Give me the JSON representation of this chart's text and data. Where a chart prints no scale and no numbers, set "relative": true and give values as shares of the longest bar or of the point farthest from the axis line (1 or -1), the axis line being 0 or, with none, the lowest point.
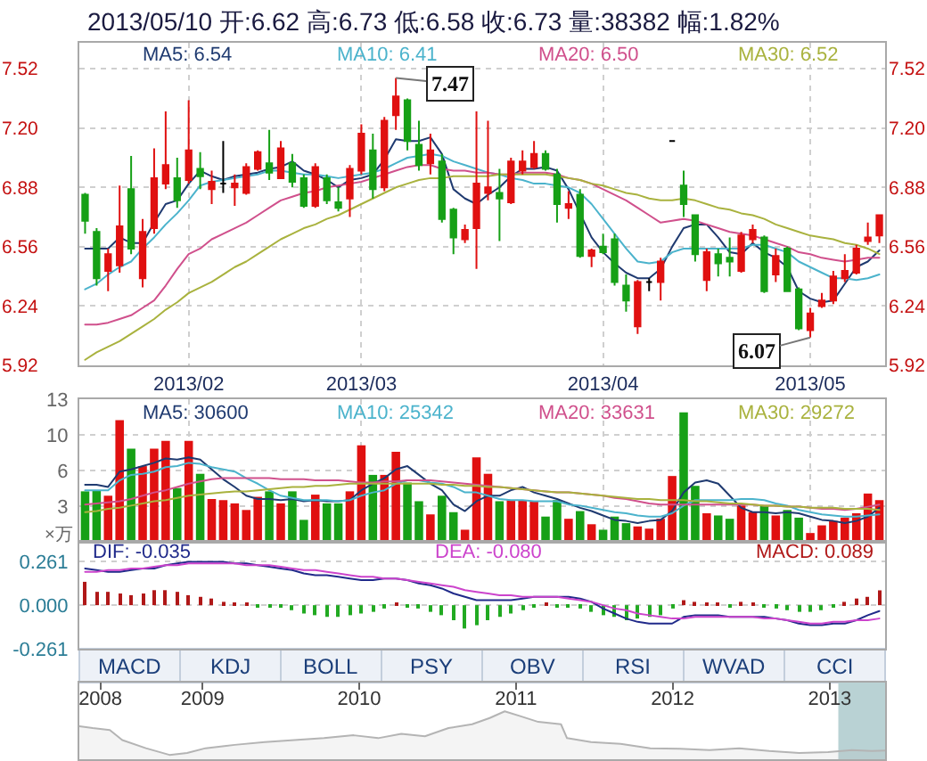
{
  "chart_data": [
    {
      "type": "candlestick",
      "title": "2013/05/10 开:6.62 高:6.73 低:6.58 收:6.73 量:38382 幅:1.82%",
      "categories": [
        null,
        null,
        null,
        null,
        null,
        null,
        null,
        null,
        null,
        "2013/02",
        null,
        null,
        null,
        null,
        null,
        null,
        null,
        null,
        null,
        null,
        null,
        null,
        null,
        null,
        "2013/03",
        null,
        null,
        null,
        null,
        null,
        null,
        null,
        null,
        null,
        null,
        null,
        null,
        null,
        null,
        null,
        null,
        null,
        null,
        null,
        null,
        "2013/04",
        null,
        null,
        null,
        null,
        null,
        null,
        null,
        null,
        null,
        null,
        null,
        null,
        null,
        null,
        null,
        null,
        null,
        "2013/05",
        null,
        null,
        null,
        null,
        null,
        null
      ],
      "ohlc": [
        [
          6.84,
          6.85,
          6.63,
          6.7
        ],
        [
          6.64,
          6.66,
          6.35,
          6.39
        ],
        [
          6.43,
          6.55,
          6.32,
          6.52
        ],
        [
          6.46,
          6.89,
          6.42,
          6.67
        ],
        [
          6.87,
          7.05,
          6.52,
          6.55
        ],
        [
          6.39,
          6.71,
          6.34,
          6.64
        ],
        [
          6.66,
          7.09,
          6.63,
          6.93
        ],
        [
          6.9,
          7.29,
          6.87,
          7.0
        ],
        [
          6.93,
          7.04,
          6.77,
          6.81
        ],
        [
          6.92,
          7.35,
          6.9,
          7.08
        ],
        [
          6.98,
          7.07,
          6.87,
          6.94
        ],
        [
          6.87,
          6.97,
          6.79,
          6.91
        ],
        [
          6.9,
          7.13,
          6.85,
          6.9
        ],
        [
          6.88,
          6.95,
          6.78,
          6.9
        ],
        [
          6.85,
          7.01,
          6.84,
          6.99
        ],
        [
          6.98,
          7.08,
          6.97,
          7.07
        ],
        [
          7.01,
          7.19,
          6.92,
          6.96
        ],
        [
          6.93,
          7.13,
          6.93,
          7.09
        ],
        [
          7.01,
          7.06,
          6.88,
          6.91
        ],
        [
          6.93,
          6.95,
          6.77,
          6.78
        ],
        [
          6.78,
          7.01,
          6.77,
          6.99
        ],
        [
          6.93,
          6.95,
          6.79,
          6.81
        ],
        [
          6.8,
          6.88,
          6.75,
          6.77
        ],
        [
          6.82,
          7.0,
          6.72,
          6.98
        ],
        [
          6.97,
          7.22,
          6.95,
          7.17
        ],
        [
          7.08,
          7.17,
          6.82,
          6.87
        ],
        [
          6.88,
          7.26,
          6.86,
          7.24
        ],
        [
          7.27,
          7.47,
          7.19,
          7.37
        ],
        [
          7.35,
          7.36,
          7.08,
          7.13
        ],
        [
          7.11,
          7.24,
          6.97,
          7.0
        ],
        [
          7.01,
          7.17,
          6.95,
          7.08
        ],
        [
          7.02,
          7.06,
          6.69,
          6.71
        ],
        [
          6.76,
          6.77,
          6.52,
          6.61
        ],
        [
          6.6,
          6.68,
          6.58,
          6.65
        ],
        [
          6.66,
          7.29,
          6.44,
          6.9
        ],
        [
          6.85,
          7.24,
          6.81,
          6.88
        ],
        [
          6.85,
          6.98,
          6.59,
          6.82
        ],
        [
          6.8,
          7.04,
          6.79,
          7.02
        ],
        [
          6.97,
          7.08,
          6.95,
          7.02
        ],
        [
          6.99,
          7.13,
          6.98,
          7.06
        ],
        [
          7.06,
          7.08,
          6.97,
          6.98
        ],
        [
          6.95,
          6.98,
          6.69,
          6.79
        ],
        [
          6.77,
          6.86,
          6.71,
          6.79
        ],
        [
          6.84,
          6.87,
          6.5,
          6.51
        ],
        [
          6.51,
          6.55,
          6.45,
          6.54
        ],
        [
          6.56,
          6.63,
          6.52,
          6.53
        ],
        [
          6.6,
          6.63,
          6.35,
          6.37
        ],
        [
          6.35,
          6.41,
          6.21,
          6.27
        ],
        [
          6.13,
          6.38,
          6.09,
          6.37
        ],
        [
          6.37,
          6.39,
          6.32,
          6.37
        ],
        [
          6.37,
          6.5,
          6.27,
          6.48
        ],
        [
          7.13,
          7.13,
          7.13,
          7.13
        ],
        [
          6.89,
          6.97,
          6.72,
          6.79
        ],
        [
          6.73,
          6.73,
          6.48,
          6.52
        ],
        [
          6.38,
          6.55,
          6.32,
          6.53
        ],
        [
          6.52,
          6.55,
          6.4,
          6.47
        ],
        [
          6.5,
          6.61,
          6.4,
          6.48
        ],
        [
          6.43,
          6.64,
          6.42,
          6.62
        ],
        [
          6.6,
          6.68,
          6.58,
          6.65
        ],
        [
          6.61,
          6.62,
          6.31,
          6.32
        ],
        [
          6.41,
          6.55,
          6.37,
          6.51
        ],
        [
          6.55,
          6.56,
          6.32,
          6.32
        ],
        [
          6.33,
          6.34,
          6.11,
          6.12
        ],
        [
          6.11,
          6.23,
          6.07,
          6.2
        ],
        [
          6.24,
          6.31,
          6.23,
          6.27
        ],
        [
          6.27,
          6.43,
          6.25,
          6.4
        ],
        [
          6.39,
          6.52,
          6.37,
          6.43
        ],
        [
          6.42,
          6.57,
          6.41,
          6.55
        ],
        [
          6.59,
          6.69,
          6.57,
          6.61
        ],
        [
          6.62,
          6.73,
          6.58,
          6.73
        ]
      ],
      "colors": [
        "#16a016",
        "#16a016",
        "#e01010",
        "#e01010",
        "#16a016",
        "#e01010",
        "#e01010",
        "#e01010",
        "#16a016",
        "#e01010",
        "#16a016",
        "#e01010",
        "#000000",
        "#e01010",
        "#e01010",
        "#e01010",
        "#16a016",
        "#e01010",
        "#16a016",
        "#16a016",
        "#e01010",
        "#16a016",
        "#16a016",
        "#e01010",
        "#e01010",
        "#16a016",
        "#e01010",
        "#e01010",
        "#16a016",
        "#16a016",
        "#e01010",
        "#16a016",
        "#16a016",
        "#e01010",
        "#e01010",
        "#e01010",
        "#16a016",
        "#e01010",
        "#e01010",
        "#e01010",
        "#16a016",
        "#16a016",
        "#e01010",
        "#16a016",
        "#e01010",
        "#16a016",
        "#16a016",
        "#16a016",
        "#e01010",
        "#000000",
        "#e01010",
        "#000000",
        "#16a016",
        "#16a016",
        "#e01010",
        "#16a016",
        "#16a016",
        "#e01010",
        "#e01010",
        "#16a016",
        "#e01010",
        "#16a016",
        "#16a016",
        "#e01010",
        "#e01010",
        "#e01010",
        "#e01010",
        "#e01010",
        "#e01010",
        "#e01010"
      ],
      "series": [
        {
          "type": "line",
          "name": "MA5: 6.54",
          "color": "#1f3a70",
          "values": [
            6.55,
            6.55,
            6.55,
            6.61,
            6.58,
            6.58,
            6.69,
            6.79,
            6.81,
            6.9,
            6.97,
            6.94,
            6.92,
            6.94,
            6.95,
            6.96,
            6.98,
            6.99,
            7.02,
            6.97,
            6.95,
            6.92,
            6.88,
            6.92,
            6.93,
            6.95,
            7.03,
            7.14,
            7.13,
            7.13,
            7.15,
            7.06,
            6.87,
            6.82,
            6.79,
            6.84,
            6.88,
            6.94,
            6.98,
            6.98,
            6.99,
            6.97,
            6.87,
            6.74,
            6.61,
            6.53,
            6.47,
            6.42,
            6.39,
            6.39,
            6.44,
            6.56,
            6.66,
            6.68,
            6.68,
            6.61,
            6.53,
            6.52,
            6.58,
            6.53,
            6.5,
            6.45,
            6.32,
            6.28,
            6.26,
            6.27,
            6.36,
            6.45,
            6.48,
            6.54
          ]
        },
        {
          "type": "line",
          "name": "MA10: 6.41",
          "color": "#4bb3cc",
          "values": [
            6.33,
            6.36,
            6.41,
            6.45,
            6.48,
            6.55,
            6.61,
            6.68,
            6.74,
            6.81,
            6.89,
            6.91,
            6.92,
            6.93,
            6.94,
            6.95,
            6.97,
            6.97,
            6.96,
            6.95,
            6.95,
            6.94,
            6.93,
            6.94,
            6.95,
            6.96,
            6.98,
            7.01,
            7.04,
            7.05,
            7.06,
            7.05,
            7.02,
            7.0,
            6.98,
            6.96,
            6.95,
            6.93,
            6.92,
            6.9,
            6.9,
            6.89,
            6.88,
            6.85,
            6.79,
            6.71,
            6.63,
            6.55,
            6.48,
            6.47,
            6.48,
            6.53,
            6.55,
            6.55,
            6.55,
            6.55,
            6.55,
            6.55,
            6.57,
            6.57,
            6.55,
            6.53,
            6.48,
            6.45,
            6.42,
            6.39,
            6.39,
            6.38,
            6.39,
            6.41
          ]
        },
        {
          "type": "line",
          "name": "MA20: 6.50",
          "color": "#d0508c",
          "values": [
            6.14,
            6.14,
            6.15,
            6.17,
            6.19,
            6.23,
            6.27,
            6.35,
            6.44,
            6.52,
            6.55,
            6.6,
            6.63,
            6.66,
            6.69,
            6.73,
            6.77,
            6.81,
            6.83,
            6.85,
            6.86,
            6.88,
            6.89,
            6.9,
            6.91,
            6.93,
            6.95,
            6.97,
            6.99,
            7.0,
            7.0,
            6.98,
            6.97,
            6.97,
            6.96,
            6.96,
            6.95,
            6.95,
            6.96,
            6.96,
            6.96,
            6.95,
            6.93,
            6.92,
            6.9,
            6.87,
            6.84,
            6.81,
            6.77,
            6.73,
            6.69,
            6.7,
            6.71,
            6.7,
            6.68,
            6.66,
            6.64,
            6.63,
            6.62,
            6.6,
            6.58,
            6.56,
            6.53,
            6.52,
            6.5,
            6.49,
            6.48,
            6.49,
            6.5,
            6.5
          ]
        },
        {
          "type": "line",
          "name": "MA30: 6.52",
          "color": "#a9b23e",
          "values": [
            5.95,
            5.99,
            6.02,
            6.05,
            6.09,
            6.13,
            6.17,
            6.22,
            6.26,
            6.31,
            6.34,
            6.37,
            6.41,
            6.45,
            6.48,
            6.52,
            6.56,
            6.6,
            6.63,
            6.66,
            6.68,
            6.71,
            6.73,
            6.76,
            6.79,
            6.82,
            6.85,
            6.88,
            6.9,
            6.92,
            6.93,
            6.93,
            6.94,
            6.94,
            6.94,
            6.94,
            6.95,
            6.95,
            6.95,
            6.95,
            6.95,
            6.94,
            6.93,
            6.92,
            6.9,
            6.89,
            6.87,
            6.85,
            6.84,
            6.82,
            6.81,
            6.81,
            6.82,
            6.81,
            6.79,
            6.77,
            6.76,
            6.74,
            6.73,
            6.71,
            6.68,
            6.66,
            6.64,
            6.62,
            6.61,
            6.6,
            6.58,
            6.57,
            6.55,
            6.52
          ]
        }
      ],
      "annotations": [
        "7.47",
        "6.07"
      ],
      "ylim": [
        5.92,
        7.66
      ],
      "yticks": [
        5.92,
        6.24,
        6.56,
        6.88,
        {
          "value": 7.2,
          "label": "7.20"
        },
        7.52
      ],
      "y2lim": [
        5.92,
        7.66
      ],
      "y2ticks": [
        5.92,
        6.24,
        6.56,
        6.88,
        {
          "value": 7.2,
          "label": "7.20"
        },
        7.52
      ],
      "grid": true
    },
    {
      "type": "bar",
      "ylabel": "×万",
      "categories": [
        null,
        null,
        null,
        null,
        null,
        null,
        null,
        null,
        null,
        "2013/02",
        null,
        null,
        null,
        null,
        null,
        null,
        null,
        null,
        null,
        null,
        null,
        null,
        null,
        null,
        "2013/03",
        null,
        null,
        null,
        null,
        null,
        null,
        null,
        null,
        null,
        null,
        null,
        null,
        null,
        null,
        null,
        null,
        null,
        null,
        null,
        null,
        "2013/04",
        null,
        null,
        null,
        null,
        null,
        null,
        null,
        null,
        null,
        null,
        null,
        null,
        null,
        null,
        null,
        null,
        null,
        "2013/05",
        null,
        null,
        null,
        null,
        null,
        null
      ],
      "series": [
        {
          "type": "bar",
          "values": [
            4.6,
            4.7,
            4.2,
            11.1,
            8.5,
            6.9,
            8.5,
            9.2,
            4.9,
            9.2,
            6.2,
            3.9,
            3.8,
            3.5,
            2.9,
            4.1,
            4.6,
            3.5,
            4.6,
            2.0,
            4.3,
            3.5,
            3.5,
            4.6,
            8.8,
            6.1,
            6.1,
            8.2,
            5.4,
            3.7,
            2.5,
            4.2,
            2.7,
            1.1,
            7.7,
            6.2,
            3.7,
            3.8,
            3.8,
            3.7,
            2.3,
            3.8,
            2.1,
            2.8,
            1.6,
            1.1,
            2.3,
            1.7,
            1.4,
            1.2,
            2.1,
            6.0,
            11.8,
            5.1,
            2.6,
            2.4,
            2.1,
            3.3,
            2.7,
            3.3,
            2.4,
            2.9,
            2.2,
            0.8,
            1.5,
            1.9,
            2.2,
            2.6,
            4.4,
            3.8
          ],
          "colors": [
            "#16a016",
            "#16a016",
            "#e01010",
            "#e01010",
            "#16a016",
            "#e01010",
            "#e01010",
            "#e01010",
            "#16a016",
            "#e01010",
            "#16a016",
            "#e01010",
            "#e01010",
            "#e01010",
            "#e01010",
            "#e01010",
            "#16a016",
            "#e01010",
            "#16a016",
            "#16a016",
            "#e01010",
            "#16a016",
            "#16a016",
            "#e01010",
            "#e01010",
            "#16a016",
            "#e01010",
            "#e01010",
            "#16a016",
            "#16a016",
            "#e01010",
            "#16a016",
            "#16a016",
            "#e01010",
            "#e01010",
            "#e01010",
            "#16a016",
            "#e01010",
            "#e01010",
            "#e01010",
            "#16a016",
            "#16a016",
            "#e01010",
            "#16a016",
            "#e01010",
            "#16a016",
            "#16a016",
            "#16a016",
            "#e01010",
            "#e01010",
            "#e01010",
            "#e01010",
            "#16a016",
            "#16a016",
            "#e01010",
            "#16a016",
            "#16a016",
            "#e01010",
            "#e01010",
            "#16a016",
            "#e01010",
            "#16a016",
            "#16a016",
            "#e01010",
            "#e01010",
            "#e01010",
            "#e01010",
            "#e01010",
            "#e01010",
            "#e01010"
          ]
        },
        {
          "type": "line",
          "name": "MA5: 30600",
          "color": "#1f3a70",
          "values": [
            5.2,
            5.2,
            5.0,
            6.4,
            6.6,
            6.9,
            7.2,
            7.6,
            7.5,
            7.7,
            7.5,
            6.6,
            5.7,
            5.0,
            4.2,
            3.9,
            3.9,
            3.8,
            3.9,
            3.7,
            3.8,
            3.7,
            3.7,
            3.8,
            4.7,
            5.3,
            5.8,
            6.6,
            6.9,
            6.1,
            5.3,
            4.7,
            3.4,
            2.8,
            3.7,
            4.2,
            4.2,
            4.7,
            5.0,
            4.5,
            4.2,
            3.9,
            3.5,
            3.1,
            2.8,
            2.4,
            2.0,
            1.9,
            1.7,
            1.9,
            2.0,
            2.8,
            4.5,
            5.4,
            5.6,
            5.3,
            4.2,
            3.1,
            2.7,
            2.7,
            2.6,
            2.7,
            2.6,
            2.3,
            2.0,
            1.9,
            1.7,
            1.9,
            2.3,
            3.1
          ]
        },
        {
          "type": "line",
          "name": "MA10: 25342",
          "color": "#4bb3cc",
          "values": [
            4.7,
            4.7,
            4.7,
            5.6,
            6.1,
            6.2,
            6.4,
            6.8,
            6.9,
            7.2,
            7.1,
            6.8,
            6.6,
            6.4,
            5.8,
            5.3,
            4.7,
            4.2,
            4.0,
            3.8,
            3.8,
            3.8,
            3.7,
            3.8,
            4.2,
            4.5,
            4.7,
            5.3,
            5.6,
            5.6,
            5.4,
            5.3,
            5.0,
            4.5,
            4.5,
            4.2,
            3.9,
            3.8,
            3.8,
            3.7,
            3.7,
            3.7,
            3.4,
            3.3,
            3.1,
            2.9,
            2.7,
            2.6,
            2.4,
            2.3,
            2.3,
            2.6,
            3.3,
            3.8,
            3.8,
            3.8,
            3.8,
            3.9,
            3.9,
            3.8,
            3.5,
            3.3,
            2.9,
            2.7,
            2.5,
            2.4,
            2.3,
            2.3,
            2.4,
            2.5
          ]
        },
        {
          "type": "line",
          "name": "MA20: 33631",
          "color": "#d0508c",
          "values": [
            3.4,
            3.5,
            3.6,
            3.7,
            3.9,
            4.2,
            4.5,
            4.7,
            5.0,
            5.3,
            5.5,
            5.7,
            5.8,
            5.8,
            5.8,
            5.8,
            5.8,
            5.7,
            5.7,
            5.7,
            5.6,
            5.6,
            5.6,
            5.5,
            5.4,
            5.4,
            5.5,
            5.5,
            5.6,
            5.6,
            5.6,
            5.5,
            5.4,
            5.3,
            5.2,
            5.1,
            5.0,
            4.9,
            4.8,
            4.7,
            4.6,
            4.5,
            4.5,
            4.4,
            4.3,
            4.2,
            4.0,
            3.9,
            3.7,
            3.5,
            3.4,
            3.4,
            3.4,
            3.4,
            3.4,
            3.4,
            3.4,
            3.4,
            3.4,
            3.3,
            3.3,
            3.2,
            3.2,
            3.1,
            3.0,
            3.0,
            2.9,
            3.0,
            3.2,
            3.4
          ]
        },
        {
          "type": "line",
          "name": "MA30: 29272",
          "color": "#a9b23e",
          "values": [
            2.7,
            2.8,
            3.0,
            3.1,
            3.3,
            3.5,
            3.7,
            3.8,
            4.0,
            4.2,
            4.3,
            4.4,
            4.5,
            4.6,
            4.6,
            4.7,
            4.8,
            4.9,
            5.0,
            5.0,
            5.1,
            5.1,
            5.2,
            5.3,
            5.3,
            5.3,
            5.3,
            5.3,
            5.3,
            5.3,
            5.3,
            5.2,
            5.2,
            5.1,
            5.1,
            5.0,
            5.0,
            4.9,
            4.8,
            4.7,
            4.6,
            4.5,
            4.5,
            4.4,
            4.3,
            4.2,
            4.1,
            4.0,
            3.9,
            3.9,
            3.8,
            3.8,
            3.8,
            3.7,
            3.7,
            3.6,
            3.5,
            3.5,
            3.4,
            3.3,
            3.3,
            3.2,
            3.2,
            3.1,
            3.1,
            3.1,
            3.0,
            3.0,
            3.0,
            2.9
          ]
        }
      ],
      "ylim": [
        0,
        13
      ],
      "yticks": [
        {
          "value": 3.25,
          "label": "3"
        },
        {
          "value": 6.5,
          "label": "6"
        },
        {
          "value": 9.75,
          "label": "10"
        },
        13
      ],
      "grid": true,
      "tick_labels": "y"
    },
    {
      "type": "bar",
      "categories": [
        null,
        null,
        null,
        null,
        null,
        null,
        null,
        null,
        null,
        "2013/02",
        null,
        null,
        null,
        null,
        null,
        null,
        null,
        null,
        null,
        null,
        null,
        null,
        null,
        null,
        "2013/03",
        null,
        null,
        null,
        null,
        null,
        null,
        null,
        null,
        null,
        null,
        null,
        null,
        null,
        null,
        null,
        null,
        null,
        null,
        null,
        null,
        "2013/04",
        null,
        null,
        null,
        null,
        null,
        null,
        null,
        null,
        null,
        null,
        null,
        null,
        null,
        null,
        null,
        null,
        null,
        "2013/05",
        null,
        null,
        null,
        null,
        null,
        null
      ],
      "series": [
        {
          "type": "line",
          "name": "DIF: -0.035",
          "color": "#202a8a",
          "values": [
            0.22,
            0.21,
            0.2,
            0.2,
            0.21,
            0.22,
            0.22,
            0.24,
            0.25,
            0.26,
            0.26,
            0.26,
            0.26,
            0.25,
            0.25,
            0.24,
            0.23,
            0.22,
            0.21,
            0.19,
            0.18,
            0.18,
            0.17,
            0.16,
            0.15,
            0.15,
            0.16,
            0.16,
            0.15,
            0.13,
            0.12,
            0.1,
            0.07,
            0.05,
            0.03,
            0.03,
            0.03,
            0.03,
            0.04,
            0.05,
            0.05,
            0.05,
            0.05,
            0.04,
            0.02,
            -0.02,
            -0.05,
            -0.08,
            -0.1,
            -0.11,
            -0.11,
            -0.11,
            -0.07,
            -0.06,
            -0.06,
            -0.06,
            -0.07,
            -0.07,
            -0.07,
            -0.07,
            -0.08,
            -0.09,
            -0.11,
            -0.12,
            -0.12,
            -0.11,
            -0.11,
            -0.09,
            -0.06,
            -0.035
          ]
        },
        {
          "type": "line",
          "name": "DEA: -0.080",
          "color": "#cc44cc",
          "values": [
            0.2,
            0.2,
            0.21,
            0.21,
            0.22,
            0.22,
            0.23,
            0.24,
            0.24,
            0.25,
            0.25,
            0.25,
            0.25,
            0.25,
            0.24,
            0.24,
            0.24,
            0.23,
            0.22,
            0.21,
            0.21,
            0.2,
            0.19,
            0.18,
            0.17,
            0.17,
            0.16,
            0.16,
            0.15,
            0.14,
            0.13,
            0.12,
            0.11,
            0.09,
            0.08,
            0.07,
            0.06,
            0.06,
            0.05,
            0.05,
            0.05,
            0.05,
            0.04,
            0.03,
            0.02,
            0.0,
            -0.02,
            -0.03,
            -0.05,
            -0.06,
            -0.07,
            -0.08,
            -0.08,
            -0.07,
            -0.07,
            -0.07,
            -0.07,
            -0.07,
            -0.07,
            -0.08,
            -0.08,
            -0.09,
            -0.1,
            -0.11,
            -0.11,
            -0.1,
            -0.1,
            -0.09,
            -0.09,
            -0.08
          ]
        },
        {
          "type": "bar",
          "name": "MACD: 0.089",
          "color": "#b01818",
          "values": [
            0.14,
            0.08,
            0.08,
            0.07,
            0.06,
            0.07,
            0.09,
            0.09,
            0.08,
            0.06,
            0.05,
            0.04,
            0.02,
            0.01,
            0.01,
            -0.01,
            -0.01,
            -0.01,
            -0.03,
            -0.05,
            -0.06,
            -0.07,
            -0.07,
            -0.06,
            -0.05,
            -0.04,
            -0.02,
            0.01,
            -0.01,
            -0.02,
            -0.04,
            -0.06,
            -0.09,
            -0.14,
            -0.12,
            -0.09,
            -0.07,
            -0.05,
            -0.03,
            -0.01,
            0.01,
            -0.01,
            -0.01,
            -0.02,
            -0.04,
            -0.06,
            -0.07,
            -0.09,
            -0.08,
            -0.07,
            -0.06,
            -0.02,
            0.03,
            0.02,
            0.01,
            0.01,
            -0.01,
            0.02,
            0.01,
            -0.01,
            -0.02,
            -0.03,
            -0.04,
            -0.04,
            -0.03,
            -0.01,
            0.02,
            0.04,
            0.05,
            0.089
          ],
          "colors": [
            "#b01818",
            "#b01818",
            "#b01818",
            "#b01818",
            "#b01818",
            "#b01818",
            "#b01818",
            "#b01818",
            "#b01818",
            "#b01818",
            "#b01818",
            "#b01818",
            "#b01818",
            "#b01818",
            "#b01818",
            "#22aa22",
            "#22aa22",
            "#22aa22",
            "#22aa22",
            "#22aa22",
            "#22aa22",
            "#22aa22",
            "#22aa22",
            "#22aa22",
            "#22aa22",
            "#22aa22",
            "#22aa22",
            "#b01818",
            "#22aa22",
            "#22aa22",
            "#22aa22",
            "#22aa22",
            "#22aa22",
            "#22aa22",
            "#22aa22",
            "#22aa22",
            "#22aa22",
            "#22aa22",
            "#22aa22",
            "#22aa22",
            "#b01818",
            "#22aa22",
            "#22aa22",
            "#22aa22",
            "#22aa22",
            "#22aa22",
            "#22aa22",
            "#22aa22",
            "#22aa22",
            "#22aa22",
            "#22aa22",
            "#22aa22",
            "#b01818",
            "#b01818",
            "#b01818",
            "#b01818",
            "#22aa22",
            "#b01818",
            "#b01818",
            "#22aa22",
            "#22aa22",
            "#22aa22",
            "#22aa22",
            "#22aa22",
            "#22aa22",
            "#22aa22",
            "#b01818",
            "#b01818",
            "#b01818",
            "#b01818"
          ]
        }
      ],
      "ylim": [
        -0.261,
        0.38
      ],
      "yticks": [
        0.261,
        {
          "value": 0,
          "label": "0.000"
        },
        -0.261
      ],
      "grid": "y",
      "tick_labels": "y"
    },
    {
      "type": "other",
      "annotations": [
        "MACD",
        "KDJ",
        "BOLL",
        "PSY",
        "OBV",
        "RSI",
        "WVAD",
        "CCI"
      ]
    },
    {
      "type": "area",
      "relative": true,
      "color": "#b4b4b4",
      "x": [
        "2008-03-20",
        "2008-04-20",
        "2008-05-30",
        "2008-06-28",
        "2008-08-22",
        "2008-10-16",
        "2008-11-26",
        "2009-01-08",
        "2009-03-17",
        "2009-05-26",
        "2009-08-03",
        "2009-10-11",
        "2009-12-19",
        "2010-02-14",
        "2010-04-09",
        "2010-06-03",
        "2010-07-28",
        "2010-09-21",
        "2010-11-01",
        "2010-12-06",
        "2011-01-11",
        "2011-02-22",
        "2011-04-16",
        "2011-04-30",
        "2011-06-25",
        "2011-09-02",
        "2011-11-10",
        "2012-01-18",
        "2012-03-27",
        "2012-06-04",
        "2012-08-13",
        "2012-10-22",
        "2012-12-28",
        "2013-02-22",
        "2013-04-09",
        "2013-05-10"
      ],
      "values": [
        0.69,
        0.65,
        0.61,
        0.4,
        0.23,
        0.09,
        0.13,
        0.23,
        0.3,
        0.36,
        0.4,
        0.44,
        0.5,
        0.44,
        0.53,
        0.48,
        0.65,
        0.73,
        0.86,
        1.0,
        0.9,
        0.78,
        0.73,
        0.44,
        0.36,
        0.32,
        0.23,
        0.22,
        0.19,
        0.23,
        0.17,
        0.13,
        0.15,
        0.19,
        0.17,
        0.18
      ],
      "xlim": [
        "2008-03-20",
        "2013-05-10"
      ],
      "xticks": [
        {
          "value": "2008-05-08",
          "label": "2008"
        },
        "2009",
        "2010",
        "2011",
        "2012",
        "2013"
      ],
      "bands": [
        {
          "axis": "x",
          "from": "2013-01-21",
          "to": "2013-05-10",
          "color": "#b9d2d4"
        }
      ]
    }
  ]
}
